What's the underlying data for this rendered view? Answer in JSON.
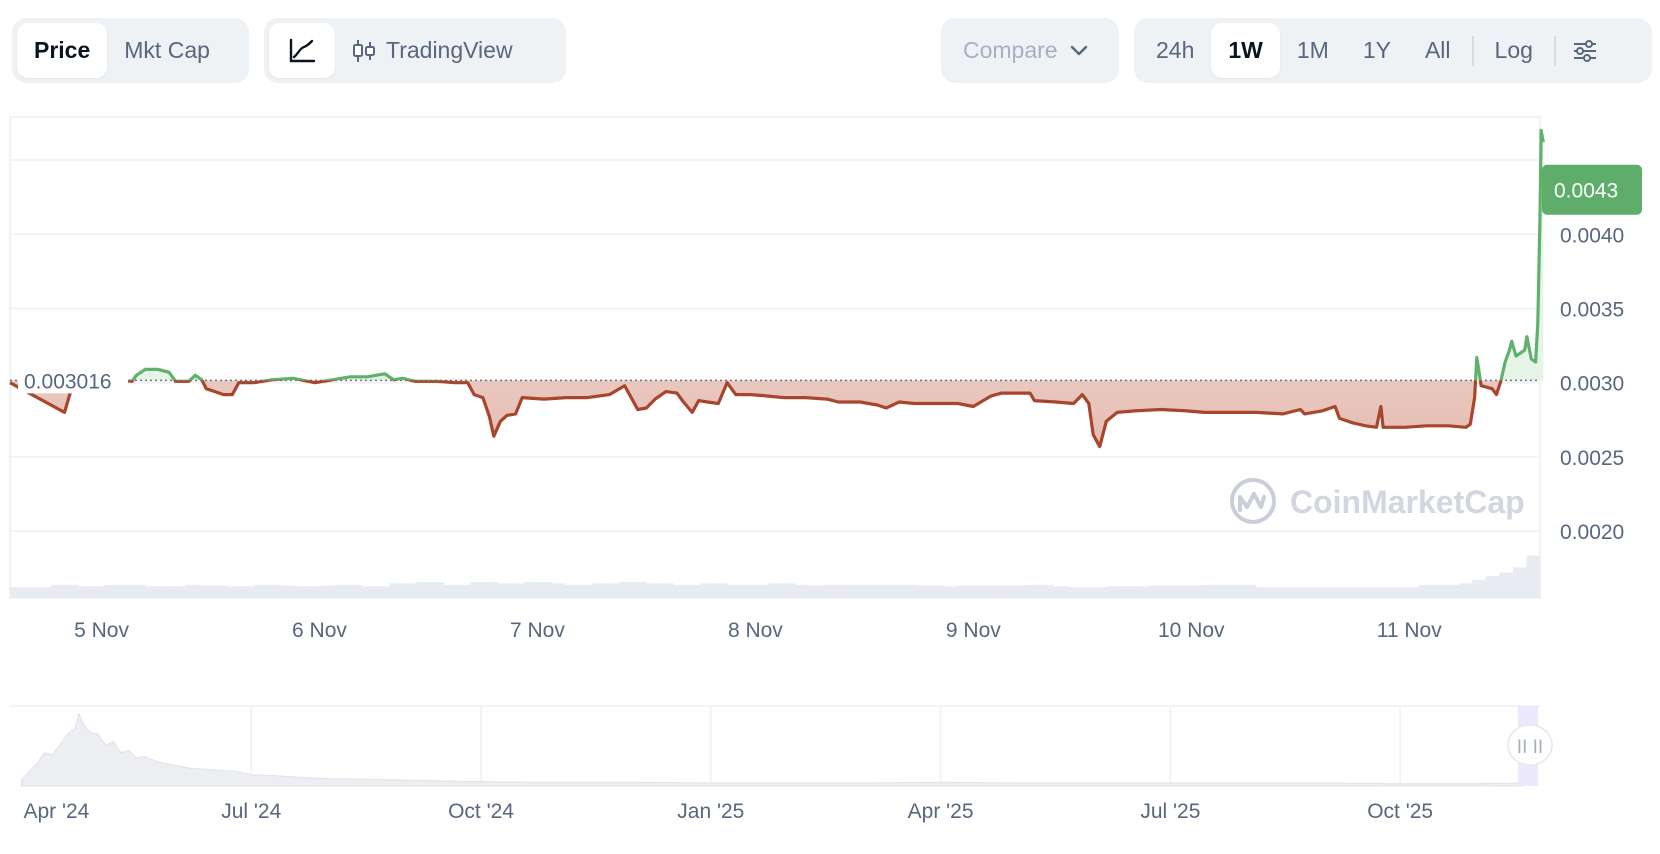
{
  "toolbar": {
    "type_tabs": [
      {
        "label": "Price",
        "active": true
      },
      {
        "label": "Mkt Cap",
        "active": false
      }
    ],
    "view_tabs": [
      {
        "icon": "line-chart-icon",
        "active": true
      },
      {
        "icon": "candlestick-icon",
        "label": "TradingView",
        "active": false
      }
    ],
    "compare": {
      "label": "Compare",
      "icon": "chevron-down-icon"
    },
    "ranges": [
      {
        "label": "24h",
        "active": false
      },
      {
        "label": "1W",
        "active": true
      },
      {
        "label": "1M",
        "active": false
      },
      {
        "label": "1Y",
        "active": false
      },
      {
        "label": "All",
        "active": false
      }
    ],
    "log_label": "Log",
    "settings_icon": "sliders-icon"
  },
  "watermark": "CoinMarketCap",
  "chart_data": {
    "type": "line",
    "reference_value": 0.003016,
    "reference_label": "0.003016",
    "current_value": 0.0043,
    "current_label": "0.0043",
    "y_ticks": [
      "0.0040",
      "0.0035",
      "0.0030",
      "0.0025",
      "0.0020"
    ],
    "y_tick_values": [
      0.004,
      0.0035,
      0.003,
      0.0025,
      0.002
    ],
    "ylim": [
      0.00155,
      0.00479
    ],
    "x_ticks": [
      "5 Nov",
      "6 Nov",
      "7 Nov",
      "8 Nov",
      "9 Nov",
      "10 Nov",
      "11 Nov"
    ],
    "x_tick_values": [
      0.42,
      1.42,
      2.42,
      3.42,
      4.42,
      5.42,
      6.42
    ],
    "xlim": [
      0,
      7.02
    ],
    "colors": {
      "up": "#5fb16c",
      "down": "#a8452d",
      "down_fill": "#f2d9d3",
      "up_fill": "#e6f4e8",
      "label_bg": "#5fad6b",
      "grid": "#eef0f3",
      "volume": "#e8ebf0"
    },
    "series": [
      {
        "values": [
          [
            0.0,
            0.003
          ],
          [
            0.25,
            0.0028
          ],
          [
            0.3,
            0.00305
          ],
          [
            0.56,
            0.00301
          ],
          [
            0.58,
            0.00305
          ],
          [
            0.62,
            0.00309
          ],
          [
            0.68,
            0.00309
          ],
          [
            0.73,
            0.00307
          ],
          [
            0.76,
            0.00301
          ],
          [
            0.82,
            0.00301
          ],
          [
            0.85,
            0.00305
          ],
          [
            0.88,
            0.00302
          ],
          [
            0.9,
            0.00296
          ],
          [
            0.94,
            0.00294
          ],
          [
            0.98,
            0.00292
          ],
          [
            1.02,
            0.00292
          ],
          [
            1.05,
            0.003
          ],
          [
            1.12,
            0.003
          ],
          [
            1.2,
            0.00302
          ],
          [
            1.3,
            0.00303
          ],
          [
            1.4,
            0.003
          ],
          [
            1.48,
            0.00302
          ],
          [
            1.56,
            0.00304
          ],
          [
            1.64,
            0.00304
          ],
          [
            1.72,
            0.00306
          ],
          [
            1.76,
            0.00302
          ],
          [
            1.8,
            0.00303
          ],
          [
            1.86,
            0.00301
          ],
          [
            1.96,
            0.00301
          ],
          [
            2.04,
            0.003
          ],
          [
            2.1,
            0.003
          ],
          [
            2.13,
            0.00292
          ],
          [
            2.17,
            0.0029
          ],
          [
            2.2,
            0.00277
          ],
          [
            2.22,
            0.00264
          ],
          [
            2.25,
            0.00274
          ],
          [
            2.28,
            0.00278
          ],
          [
            2.32,
            0.00279
          ],
          [
            2.35,
            0.0029
          ],
          [
            2.45,
            0.00289
          ],
          [
            2.55,
            0.0029
          ],
          [
            2.65,
            0.0029
          ],
          [
            2.75,
            0.00292
          ],
          [
            2.82,
            0.00298
          ],
          [
            2.85,
            0.0029
          ],
          [
            2.88,
            0.00282
          ],
          [
            2.92,
            0.00283
          ],
          [
            2.96,
            0.00289
          ],
          [
            3.01,
            0.00294
          ],
          [
            3.06,
            0.00293
          ],
          [
            3.09,
            0.00287
          ],
          [
            3.13,
            0.0028
          ],
          [
            3.16,
            0.00288
          ],
          [
            3.2,
            0.00287
          ],
          [
            3.25,
            0.00286
          ],
          [
            3.29,
            0.003
          ],
          [
            3.33,
            0.00292
          ],
          [
            3.4,
            0.00292
          ],
          [
            3.48,
            0.00291
          ],
          [
            3.55,
            0.0029
          ],
          [
            3.65,
            0.0029
          ],
          [
            3.75,
            0.00289
          ],
          [
            3.8,
            0.00287
          ],
          [
            3.9,
            0.00287
          ],
          [
            3.98,
            0.00285
          ],
          [
            4.02,
            0.00283
          ],
          [
            4.08,
            0.00287
          ],
          [
            4.15,
            0.00286
          ],
          [
            4.25,
            0.00286
          ],
          [
            4.35,
            0.00286
          ],
          [
            4.42,
            0.00284
          ],
          [
            4.5,
            0.00291
          ],
          [
            4.55,
            0.00293
          ],
          [
            4.6,
            0.00293
          ],
          [
            4.68,
            0.00293
          ],
          [
            4.7,
            0.00288
          ],
          [
            4.8,
            0.00287
          ],
          [
            4.88,
            0.00286
          ],
          [
            4.92,
            0.00292
          ],
          [
            4.95,
            0.00286
          ],
          [
            4.97,
            0.00265
          ],
          [
            5.0,
            0.00257
          ],
          [
            5.03,
            0.00274
          ],
          [
            5.08,
            0.0028
          ],
          [
            5.16,
            0.00281
          ],
          [
            5.28,
            0.00282
          ],
          [
            5.4,
            0.00281
          ],
          [
            5.48,
            0.0028
          ],
          [
            5.6,
            0.0028
          ],
          [
            5.72,
            0.0028
          ],
          [
            5.84,
            0.00279
          ],
          [
            5.92,
            0.00282
          ],
          [
            5.94,
            0.00279
          ],
          [
            6.02,
            0.00281
          ],
          [
            6.08,
            0.00284
          ],
          [
            6.1,
            0.00276
          ],
          [
            6.16,
            0.00273
          ],
          [
            6.22,
            0.00271
          ],
          [
            6.27,
            0.0027
          ],
          [
            6.29,
            0.00284
          ],
          [
            6.3,
            0.0027
          ],
          [
            6.4,
            0.0027
          ],
          [
            6.5,
            0.00271
          ],
          [
            6.6,
            0.00271
          ],
          [
            6.68,
            0.0027
          ],
          [
            6.7,
            0.00272
          ],
          [
            6.72,
            0.0029
          ],
          [
            6.73,
            0.00317
          ],
          [
            6.75,
            0.00298
          ],
          [
            6.8,
            0.00296
          ],
          [
            6.82,
            0.00292
          ],
          [
            6.84,
            0.00301
          ],
          [
            6.86,
            0.00314
          ],
          [
            6.88,
            0.00322
          ],
          [
            6.89,
            0.00328
          ],
          [
            6.91,
            0.00318
          ],
          [
            6.95,
            0.00322
          ],
          [
            6.96,
            0.00331
          ],
          [
            6.98,
            0.00316
          ],
          [
            7.0,
            0.00314
          ],
          [
            7.01,
            0.0034
          ],
          [
            7.02,
            0.00412
          ],
          [
            7.025,
            0.0047
          ],
          [
            7.035,
            0.00462
          ]
        ]
      }
    ],
    "volume_relative": [
      0.15,
      0.15,
      0.15,
      0.18,
      0.18,
      0.16,
      0.16,
      0.18,
      0.18,
      0.18,
      0.16,
      0.16,
      0.16,
      0.18,
      0.17,
      0.17,
      0.16,
      0.16,
      0.18,
      0.18,
      0.17,
      0.16,
      0.16,
      0.17,
      0.18,
      0.18,
      0.16,
      0.16,
      0.2,
      0.2,
      0.22,
      0.22,
      0.18,
      0.18,
      0.22,
      0.22,
      0.2,
      0.2,
      0.22,
      0.22,
      0.2,
      0.18,
      0.18,
      0.2,
      0.2,
      0.22,
      0.22,
      0.2,
      0.2,
      0.18,
      0.18,
      0.2,
      0.2,
      0.18,
      0.18,
      0.18,
      0.2,
      0.2,
      0.18,
      0.17,
      0.18,
      0.18,
      0.18,
      0.18,
      0.18,
      0.18,
      0.18,
      0.17,
      0.17,
      0.16,
      0.17,
      0.17,
      0.17,
      0.17,
      0.17,
      0.18,
      0.18,
      0.16,
      0.15,
      0.15,
      0.15,
      0.16,
      0.16,
      0.16,
      0.17,
      0.17,
      0.17,
      0.17,
      0.18,
      0.18,
      0.18,
      0.18,
      0.15,
      0.15,
      0.15,
      0.15,
      0.15,
      0.15,
      0.15,
      0.15,
      0.15,
      0.15,
      0.15,
      0.15,
      0.18,
      0.18,
      0.18,
      0.2,
      0.25,
      0.3,
      0.35,
      0.42,
      0.58
    ],
    "overview": {
      "x_ticks": [
        "Apr '24",
        "Jul '24",
        "Oct '24",
        "Jan '25",
        "Apr '25",
        "Jul '25",
        "Oct '25"
      ],
      "x_tick_values": [
        0.0,
        3.0,
        6.0,
        9.0,
        12.0,
        15.0,
        18.0
      ],
      "xlim": [
        -0.15,
        19.8
      ],
      "values": [
        [
          0.0,
          0.08
        ],
        [
          0.1,
          0.2
        ],
        [
          0.2,
          0.3
        ],
        [
          0.3,
          0.45
        ],
        [
          0.4,
          0.42
        ],
        [
          0.5,
          0.55
        ],
        [
          0.6,
          0.7
        ],
        [
          0.7,
          0.78
        ],
        [
          0.75,
          0.98
        ],
        [
          0.8,
          0.85
        ],
        [
          0.9,
          0.72
        ],
        [
          1.0,
          0.7
        ],
        [
          1.1,
          0.55
        ],
        [
          1.2,
          0.6
        ],
        [
          1.3,
          0.45
        ],
        [
          1.4,
          0.48
        ],
        [
          1.5,
          0.38
        ],
        [
          1.6,
          0.4
        ],
        [
          1.8,
          0.32
        ],
        [
          2.0,
          0.28
        ],
        [
          2.2,
          0.24
        ],
        [
          2.5,
          0.22
        ],
        [
          2.8,
          0.2
        ],
        [
          3.0,
          0.15
        ],
        [
          3.3,
          0.14
        ],
        [
          3.6,
          0.12
        ],
        [
          4.0,
          0.1
        ],
        [
          4.5,
          0.09
        ],
        [
          5.0,
          0.08
        ],
        [
          6.0,
          0.06
        ],
        [
          7.0,
          0.05
        ],
        [
          8.0,
          0.05
        ],
        [
          9.0,
          0.04
        ],
        [
          10.0,
          0.04
        ],
        [
          11.0,
          0.04
        ],
        [
          12.0,
          0.05
        ],
        [
          13.0,
          0.04
        ],
        [
          14.0,
          0.04
        ],
        [
          15.0,
          0.04
        ],
        [
          16.0,
          0.04
        ],
        [
          17.0,
          0.04
        ],
        [
          18.0,
          0.03
        ],
        [
          19.0,
          0.03
        ],
        [
          19.6,
          0.04
        ]
      ]
    }
  }
}
